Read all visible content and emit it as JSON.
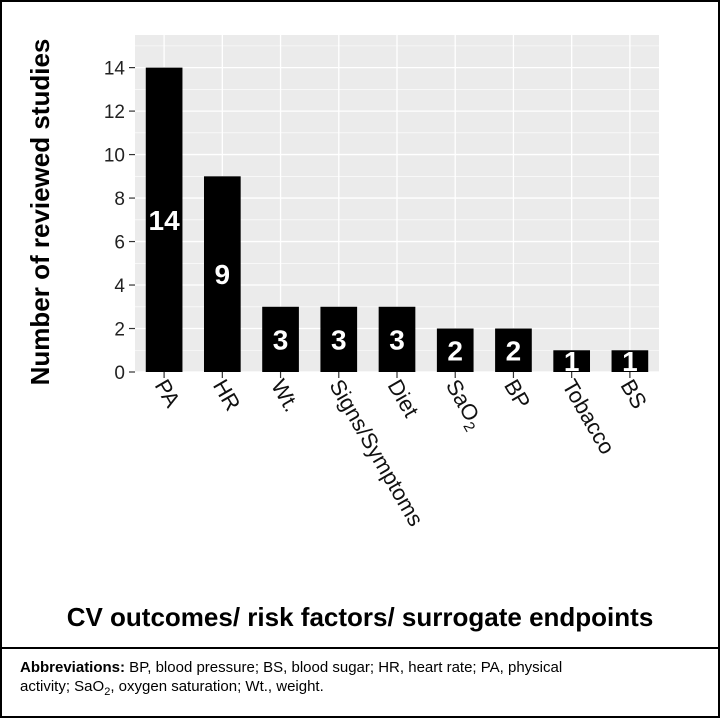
{
  "chart_data": {
    "type": "bar",
    "categories": [
      "PA",
      "HR",
      "Wt.",
      "Signs/Symptoms",
      "Diet",
      "SaO2",
      "BP",
      "Tobacco",
      "BS"
    ],
    "values": [
      14,
      9,
      3,
      3,
      3,
      2,
      2,
      1,
      1
    ],
    "data_labels": [
      "14",
      "9",
      "3",
      "3",
      "3",
      "2",
      "2",
      "1",
      "1"
    ],
    "xlabel": "CV outcomes/ risk factors/ surrogate endpoints",
    "ylabel": "Number of reviewed studies",
    "ylim": [
      0,
      15.5
    ],
    "yticks": [
      "0",
      "2",
      "4",
      "6",
      "8",
      "10",
      "12",
      "14"
    ],
    "grid": true,
    "bar_color": "#000000",
    "panel_color": "#ebebeb",
    "grid_color": "#ffffff"
  },
  "footnote": {
    "heading": "Abbreviations:",
    "line1": " BP, blood pressure; BS, blood sugar; HR, heart rate; PA, physical",
    "line2_pre": "activity; SaO",
    "line2_sub": "2",
    "line2_post": ", oxygen saturation; Wt., weight."
  }
}
